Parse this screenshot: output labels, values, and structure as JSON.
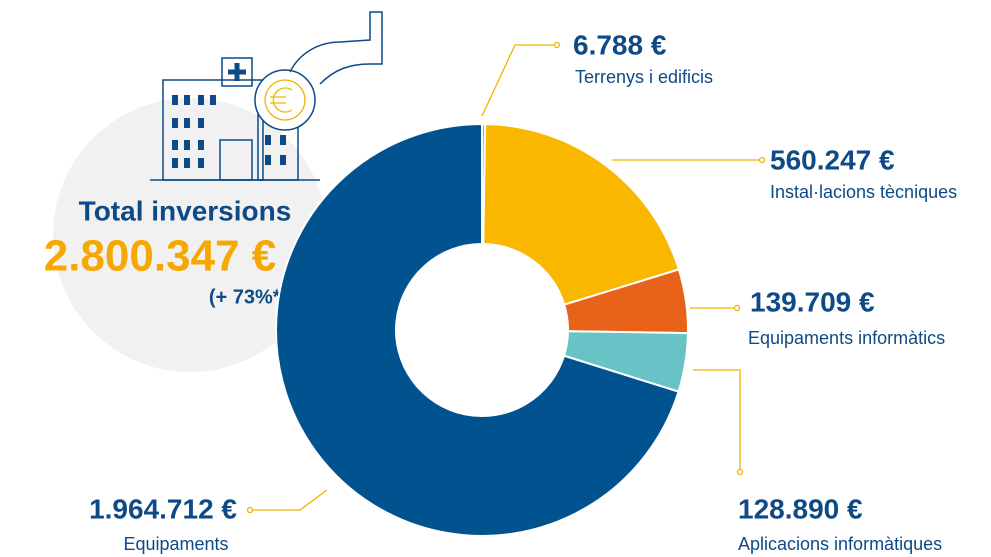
{
  "chart_data": {
    "type": "donut",
    "total_title": "Total inversions",
    "total": "2.800.347 €",
    "change": "(+ 73%*)",
    "categories": [
      "Terrenys i edificis",
      "Instal·lacions tècniques",
      "Equipaments informàtics",
      "Aplicacions informàtiques",
      "Equipaments"
    ],
    "values": [
      6788,
      560247,
      139709,
      128890,
      1964712
    ],
    "value_labels": [
      "6.788 €",
      "560.247 €",
      "139.709 €",
      "128.890 €",
      "1.964.712 €"
    ],
    "colors": [
      "#9aa6b2",
      "#f9b700",
      "#e8621a",
      "#67c3c6",
      "#00538f"
    ]
  }
}
